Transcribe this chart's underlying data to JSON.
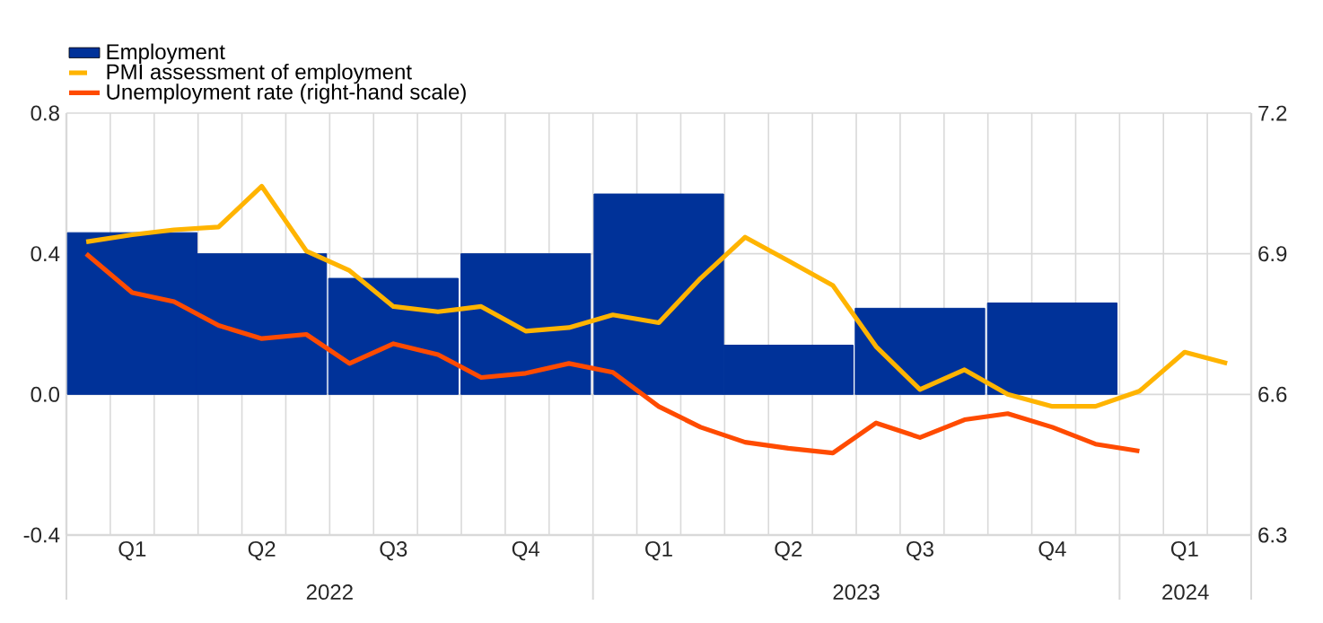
{
  "chart_data": {
    "type": "bar",
    "series": [
      {
        "name": "Employment",
        "color": "#003299",
        "x": [
          "2022-02-15",
          "2022-05-15",
          "2022-08-15",
          "2022-11-15",
          "2023-02-15",
          "2023-05-15",
          "2023-08-15",
          "2023-11-15"
        ],
        "values": [
          0.46,
          0.4,
          0.33,
          0.4,
          0.57,
          0.14,
          0.245,
          0.26
        ]
      },
      {
        "name": "PMI assessment of employment",
        "type": "line",
        "color": "#ffb400",
        "x": [
          "2022-01-15",
          "2022-02-15",
          "2022-03-15",
          "2022-04-15",
          "2022-05-15",
          "2022-06-15",
          "2022-07-15",
          "2022-08-15",
          "2022-09-15",
          "2022-10-15",
          "2022-11-15",
          "2022-12-15",
          "2023-01-15",
          "2023-02-15",
          "2023-03-15",
          "2023-04-15",
          "2023-05-15",
          "2023-06-15",
          "2023-07-15",
          "2023-08-15",
          "2023-09-15",
          "2023-10-15",
          "2023-11-15",
          "2023-12-15",
          "2024-01-15",
          "2024-02-15",
          "2024-03-15"
        ],
        "values": [
          0.434,
          0.454,
          0.468,
          0.476,
          0.592,
          0.408,
          0.352,
          0.25,
          0.235,
          0.25,
          0.18,
          0.19,
          0.226,
          0.204,
          0.33,
          0.447,
          0.38,
          0.31,
          0.136,
          0.014,
          0.07,
          0.0,
          -0.034,
          -0.034,
          0.009,
          0.12,
          0.088
        ]
      },
      {
        "name": "Unemployment rate (right-hand scale)",
        "type": "line",
        "axis": "y2",
        "color": "#ff4b00",
        "x": [
          "2022-01-15",
          "2022-02-15",
          "2022-03-15",
          "2022-04-15",
          "2022-05-15",
          "2022-06-15",
          "2022-07-15",
          "2022-08-15",
          "2022-09-15",
          "2022-10-15",
          "2022-11-15",
          "2022-12-15",
          "2023-01-15",
          "2023-02-15",
          "2023-03-15",
          "2023-04-15",
          "2023-05-15",
          "2023-06-15",
          "2023-07-15",
          "2023-08-15",
          "2023-09-15",
          "2023-10-15",
          "2023-11-15",
          "2023-12-15",
          "2024-01-15"
        ],
        "values": [
          6.9,
          6.817,
          6.798,
          6.747,
          6.719,
          6.728,
          6.666,
          6.708,
          6.685,
          6.636,
          6.645,
          6.666,
          6.647,
          6.574,
          6.53,
          6.498,
          6.485,
          6.475,
          6.539,
          6.508,
          6.546,
          6.559,
          6.53,
          6.494,
          6.479
        ]
      }
    ],
    "xlim": [
      "2022-01-01",
      "2024-04-01"
    ],
    "xticks": [
      {
        "value": "2022-02-15",
        "label": "Q1"
      },
      {
        "value": "2022-05-15",
        "label": "Q2"
      },
      {
        "value": "2022-08-15",
        "label": "Q3"
      },
      {
        "value": "2022-11-15",
        "label": "Q4"
      },
      {
        "value": "2023-02-15",
        "label": "Q1"
      },
      {
        "value": "2023-05-15",
        "label": "Q2"
      },
      {
        "value": "2023-08-15",
        "label": "Q3"
      },
      {
        "value": "2023-11-15",
        "label": "Q4"
      },
      {
        "value": "2024-02-15",
        "label": "Q1"
      },
      {
        "value": "2022-01-01",
        "label": null
      },
      {
        "value": "2023-01-01",
        "label": null
      },
      {
        "value": "2024-01-01",
        "label": null
      },
      {
        "value": "2024-04-01",
        "label": null
      }
    ],
    "ylim": [
      -0.4,
      0.8
    ],
    "yticks": [
      -0.4,
      {
        "value": 0,
        "label": "0.0"
      },
      0.4,
      0.8
    ],
    "y2lim": [
      6.3,
      7.2
    ],
    "y2ticks": [
      6.3,
      6.6,
      6.9,
      7.2
    ],
    "annotations": [
      "2022",
      "2023",
      "2024"
    ],
    "grid": true,
    "legend": "top left"
  }
}
